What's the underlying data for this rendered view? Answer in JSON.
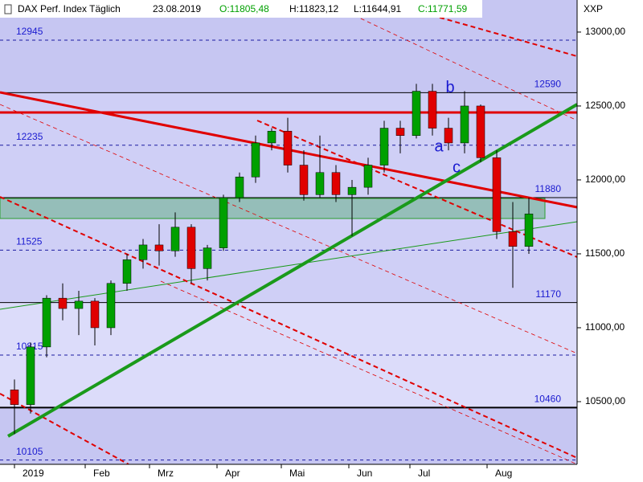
{
  "chart_data": {
    "type": "candlestick",
    "title": "DAX Perf. Index Täglich",
    "date": "23.08.2019",
    "ohlc_open": "O:11805,48",
    "ohlc_high": "H:11823,12",
    "ohlc_low": "L:11644,91",
    "ohlc_close": "C:11771,59",
    "axis_label": "XXP",
    "up_color": "#00a000",
    "down_color": "#e00000",
    "xlim": [
      -2.5,
      177
    ],
    "ylim": [
      10076,
      13217
    ],
    "yticks": [
      {
        "value": 13000,
        "label": "13000,00"
      },
      {
        "value": 12500,
        "label": "12500,00"
      },
      {
        "value": 12000,
        "label": "12000,00"
      },
      {
        "value": 11500,
        "label": "11500,00"
      },
      {
        "value": 11000,
        "label": "11000,00"
      },
      {
        "value": 10500,
        "label": "10500,00"
      }
    ],
    "xticks": [
      {
        "value": 2,
        "label": "2019"
      },
      {
        "value": 24,
        "label": "Feb"
      },
      {
        "value": 44,
        "label": "Mrz"
      },
      {
        "value": 65,
        "label": "Apr"
      },
      {
        "value": 85,
        "label": "Mai"
      },
      {
        "value": 106,
        "label": "Jun"
      },
      {
        "value": 125,
        "label": "Jul"
      },
      {
        "value": 149,
        "label": "Aug"
      }
    ],
    "levels": [
      {
        "value": 12945,
        "style": "dashed",
        "label_side": "left"
      },
      {
        "value": 12590,
        "style": "solid",
        "label_side": "right"
      },
      {
        "value": 12235,
        "style": "dashed",
        "label_side": "left"
      },
      {
        "value": 11880,
        "style": "solid",
        "label_side": "right"
      },
      {
        "value": 11525,
        "style": "dashed",
        "label_side": "left"
      },
      {
        "value": 11170,
        "style": "solid",
        "label_side": "right"
      },
      {
        "value": 10815,
        "style": "dashed",
        "label_side": "left"
      },
      {
        "value": 10460,
        "style": "thick",
        "label_side": "right"
      },
      {
        "value": 10105,
        "style": "dashed",
        "label_side": "left"
      }
    ],
    "annotations": [
      {
        "text": "a",
        "x": 134,
        "y": 12220
      },
      {
        "text": "b",
        "x": 137.5,
        "y": 12620
      },
      {
        "text": "c",
        "x": 139.5,
        "y": 12080
      }
    ],
    "candles": [
      {
        "x": 2,
        "open": 10580,
        "high": 10650,
        "low": 10280,
        "close": 10480
      },
      {
        "x": 7,
        "open": 10480,
        "high": 10900,
        "low": 10420,
        "close": 10870
      },
      {
        "x": 12,
        "open": 10870,
        "high": 11220,
        "low": 10800,
        "close": 11200
      },
      {
        "x": 17,
        "open": 11200,
        "high": 11300,
        "low": 11050,
        "close": 11130
      },
      {
        "x": 22,
        "open": 11130,
        "high": 11250,
        "low": 10950,
        "close": 11180
      },
      {
        "x": 27,
        "open": 11180,
        "high": 11200,
        "low": 10880,
        "close": 11000
      },
      {
        "x": 32,
        "open": 11000,
        "high": 11320,
        "low": 10950,
        "close": 11300
      },
      {
        "x": 37,
        "open": 11300,
        "high": 11500,
        "low": 11250,
        "close": 11460
      },
      {
        "x": 42,
        "open": 11460,
        "high": 11600,
        "low": 11400,
        "close": 11560
      },
      {
        "x": 47,
        "open": 11560,
        "high": 11700,
        "low": 11420,
        "close": 11520
      },
      {
        "x": 52,
        "open": 11520,
        "high": 11780,
        "low": 11480,
        "close": 11680
      },
      {
        "x": 57,
        "open": 11680,
        "high": 11700,
        "low": 11300,
        "close": 11400
      },
      {
        "x": 62,
        "open": 11400,
        "high": 11560,
        "low": 11320,
        "close": 11540
      },
      {
        "x": 67,
        "open": 11540,
        "high": 11900,
        "low": 11520,
        "close": 11880
      },
      {
        "x": 72,
        "open": 11880,
        "high": 12050,
        "low": 11850,
        "close": 12020
      },
      {
        "x": 77,
        "open": 12020,
        "high": 12300,
        "low": 11980,
        "close": 12250
      },
      {
        "x": 82,
        "open": 12250,
        "high": 12350,
        "low": 12200,
        "close": 12330
      },
      {
        "x": 87,
        "open": 12330,
        "high": 12420,
        "low": 12050,
        "close": 12100
      },
      {
        "x": 92,
        "open": 12100,
        "high": 12200,
        "low": 11860,
        "close": 11900
      },
      {
        "x": 97,
        "open": 11900,
        "high": 12300,
        "low": 11880,
        "close": 12050
      },
      {
        "x": 102,
        "open": 12050,
        "high": 12100,
        "low": 11850,
        "close": 11900
      },
      {
        "x": 107,
        "open": 11900,
        "high": 12000,
        "low": 11620,
        "close": 11950
      },
      {
        "x": 112,
        "open": 11950,
        "high": 12150,
        "low": 11900,
        "close": 12100
      },
      {
        "x": 117,
        "open": 12100,
        "high": 12400,
        "low": 12050,
        "close": 12350
      },
      {
        "x": 122,
        "open": 12350,
        "high": 12400,
        "low": 12180,
        "close": 12300
      },
      {
        "x": 127,
        "open": 12300,
        "high": 12650,
        "low": 12280,
        "close": 12600
      },
      {
        "x": 132,
        "open": 12600,
        "high": 12650,
        "low": 12300,
        "close": 12350
      },
      {
        "x": 137,
        "open": 12350,
        "high": 12420,
        "low": 12200,
        "close": 12250
      },
      {
        "x": 142,
        "open": 12250,
        "high": 12600,
        "low": 12180,
        "close": 12500
      },
      {
        "x": 147,
        "open": 12500,
        "high": 12510,
        "low": 12120,
        "close": 12150
      },
      {
        "x": 152,
        "open": 12150,
        "high": 12200,
        "low": 11600,
        "close": 11650
      },
      {
        "x": 157,
        "open": 11650,
        "high": 11850,
        "low": 11270,
        "close": 11550
      },
      {
        "x": 162,
        "open": 11550,
        "high": 11880,
        "low": 11500,
        "close": 11770
      }
    ]
  }
}
